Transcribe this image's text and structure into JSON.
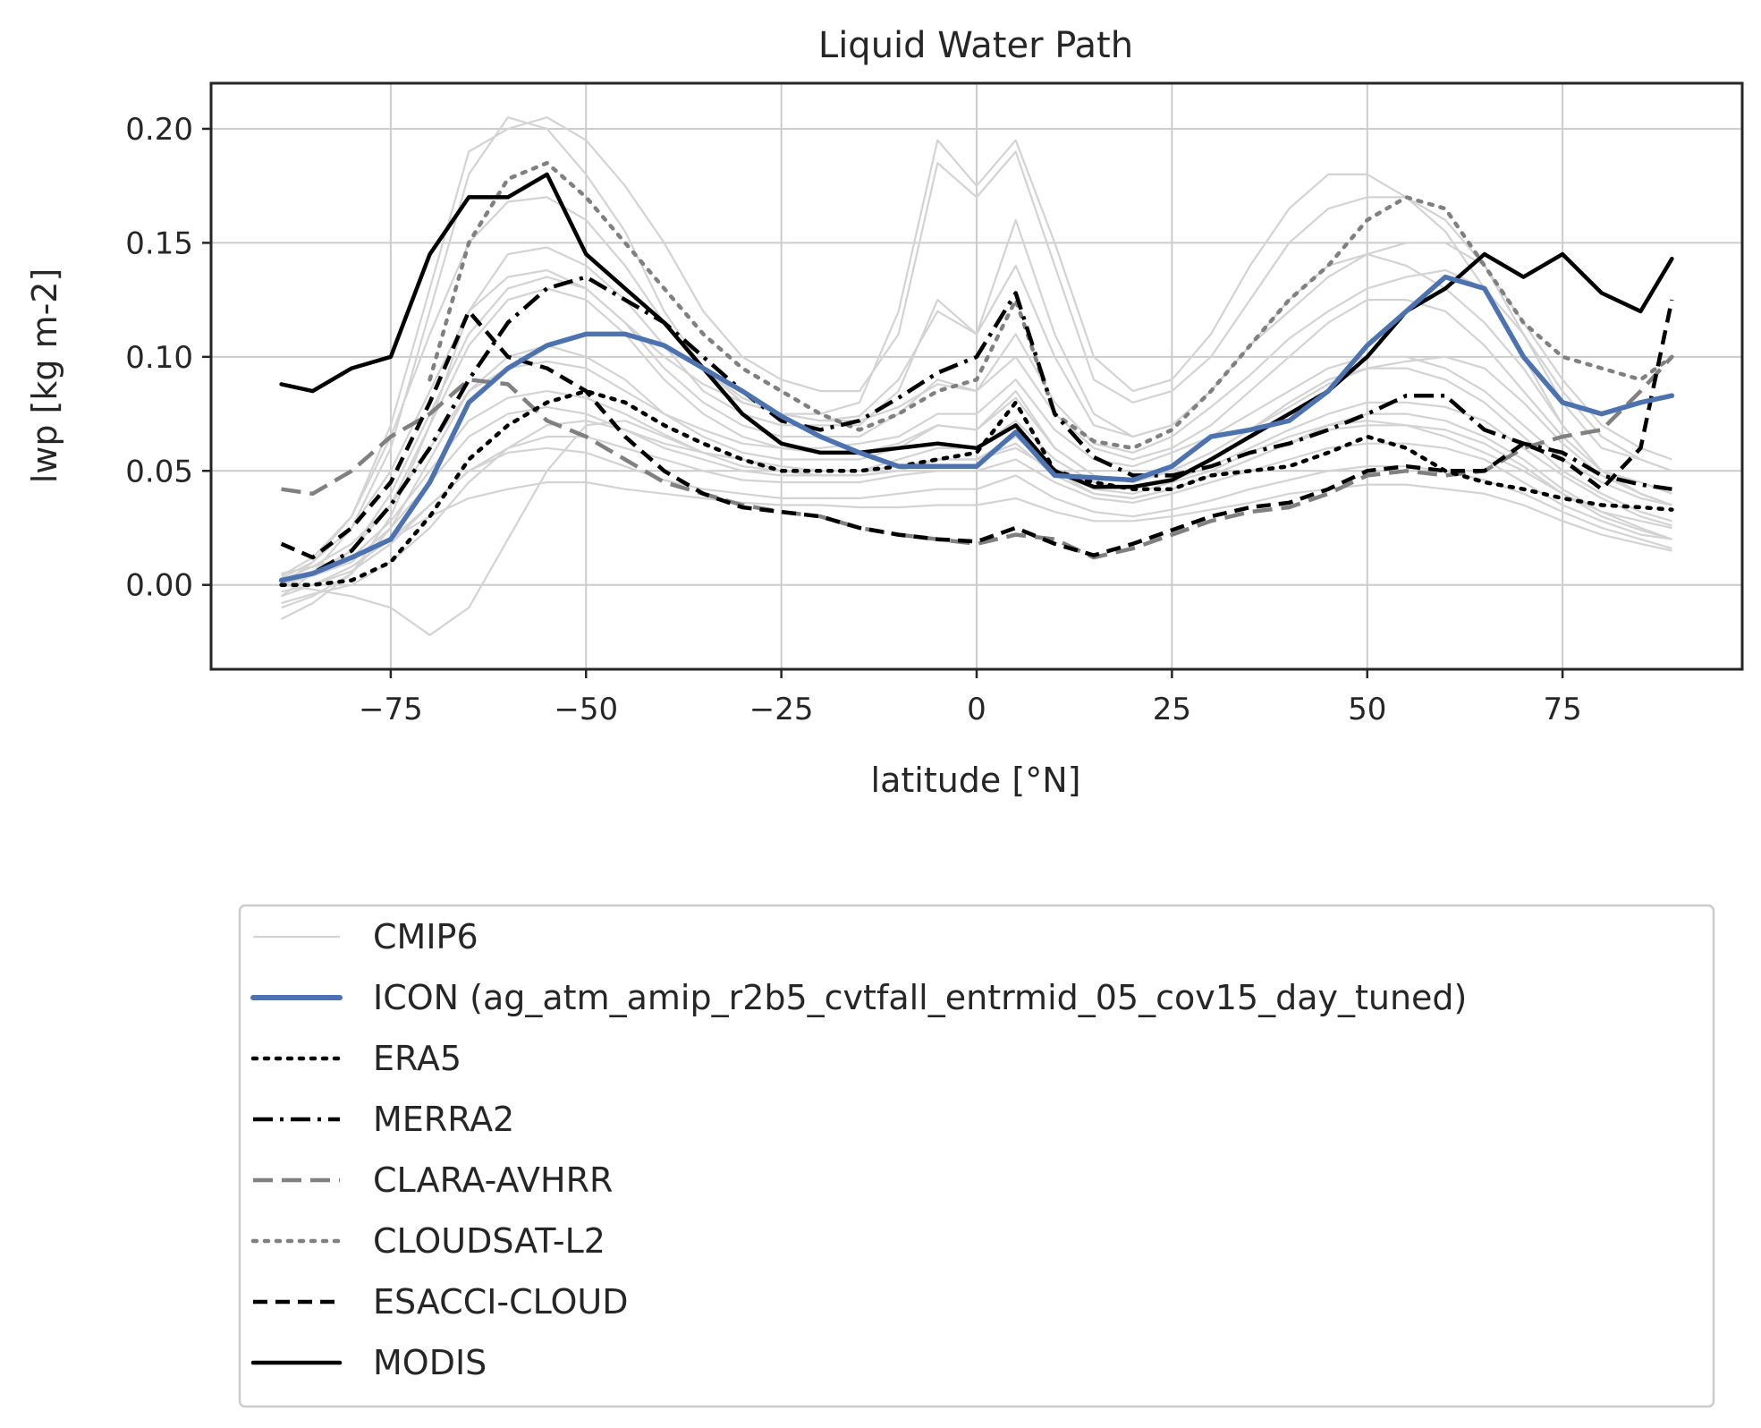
{
  "chart_data": {
    "type": "line",
    "title": "Liquid Water Path",
    "xlabel": "latitude [°N]",
    "ylabel": "lwp [kg m-2]",
    "xlim": [
      -98,
      98
    ],
    "ylim": [
      -0.037,
      0.22
    ],
    "xticks": [
      -75,
      -50,
      -25,
      0,
      25,
      50,
      75
    ],
    "xtick_labels": [
      "−75",
      "−50",
      "−25",
      "0",
      "25",
      "50",
      "75"
    ],
    "yticks": [
      0.0,
      0.05,
      0.1,
      0.15,
      0.2
    ],
    "ytick_labels": [
      "0.00",
      "0.05",
      "0.10",
      "0.15",
      "0.20"
    ],
    "grid": true,
    "legend_position": "below plot",
    "legend_order": [
      "CMIP6",
      "ICON (ag_atm_amip_r2b5_cvtfall_entrmid_05_cov15_day_tuned)",
      "ERA5",
      "MERRA2",
      "CLARA-AVHRR",
      "CLOUDSAT-L2",
      "ESACCI-CLOUD",
      "MODIS"
    ],
    "x": [
      -89,
      -85,
      -80,
      -75,
      -70,
      -65,
      -60,
      -55,
      -50,
      -45,
      -40,
      -35,
      -30,
      -25,
      -20,
      -15,
      -10,
      -5,
      0,
      5,
      10,
      15,
      20,
      25,
      30,
      35,
      40,
      45,
      50,
      55,
      60,
      65,
      70,
      75,
      80,
      85,
      89
    ],
    "cmip6_color": "#d3d3d3",
    "cmip6_models": [
      [
        -0.005,
        0.005,
        0.025,
        0.06,
        0.12,
        0.18,
        0.205,
        0.2,
        0.18,
        0.155,
        0.12,
        0.095,
        0.08,
        0.075,
        0.075,
        0.08,
        0.12,
        0.195,
        0.175,
        0.195,
        0.15,
        0.1,
        0.085,
        0.09,
        0.11,
        0.14,
        0.165,
        0.18,
        0.18,
        0.17,
        0.155,
        0.13,
        0.1,
        0.07,
        0.05,
        0.045,
        0.04
      ],
      [
        0.0,
        0.01,
        0.03,
        0.07,
        0.13,
        0.19,
        0.2,
        0.205,
        0.195,
        0.175,
        0.15,
        0.12,
        0.1,
        0.09,
        0.085,
        0.085,
        0.11,
        0.185,
        0.17,
        0.19,
        0.14,
        0.09,
        0.08,
        0.085,
        0.1,
        0.125,
        0.15,
        0.165,
        0.17,
        0.17,
        0.16,
        0.14,
        0.11,
        0.08,
        0.06,
        0.055,
        0.05
      ],
      [
        -0.015,
        -0.008,
        0.005,
        0.03,
        0.07,
        0.12,
        0.145,
        0.148,
        0.14,
        0.125,
        0.105,
        0.085,
        0.075,
        0.07,
        0.07,
        0.07,
        0.085,
        0.125,
        0.11,
        0.14,
        0.1,
        0.07,
        0.065,
        0.07,
        0.085,
        0.105,
        0.125,
        0.14,
        0.145,
        0.14,
        0.13,
        0.115,
        0.095,
        0.07,
        0.05,
        0.04,
        0.035
      ],
      [
        0.0,
        0.005,
        0.015,
        0.04,
        0.075,
        0.11,
        0.13,
        0.135,
        0.13,
        0.115,
        0.095,
        0.08,
        0.07,
        0.065,
        0.065,
        0.065,
        0.075,
        0.09,
        0.085,
        0.1,
        0.075,
        0.06,
        0.055,
        0.06,
        0.07,
        0.085,
        0.1,
        0.115,
        0.125,
        0.125,
        0.12,
        0.105,
        0.085,
        0.065,
        0.05,
        0.04,
        0.035
      ],
      [
        -0.01,
        -0.005,
        0.005,
        0.025,
        0.055,
        0.085,
        0.1,
        0.105,
        0.1,
        0.09,
        0.075,
        0.065,
        0.058,
        0.055,
        0.055,
        0.055,
        0.06,
        0.07,
        0.068,
        0.085,
        0.06,
        0.048,
        0.045,
        0.05,
        0.058,
        0.068,
        0.08,
        0.09,
        0.095,
        0.095,
        0.09,
        0.08,
        0.065,
        0.05,
        0.04,
        0.032,
        0.028
      ],
      [
        0.0,
        -0.002,
        -0.005,
        -0.01,
        -0.022,
        -0.01,
        0.02,
        0.05,
        0.07,
        0.072,
        0.065,
        0.058,
        0.055,
        0.05,
        0.048,
        0.048,
        0.05,
        0.055,
        0.055,
        0.06,
        0.05,
        0.042,
        0.04,
        0.045,
        0.05,
        0.058,
        0.065,
        0.07,
        0.072,
        0.07,
        0.065,
        0.058,
        0.05,
        0.04,
        0.032,
        0.028,
        0.025
      ],
      [
        0.005,
        0.008,
        0.012,
        0.02,
        0.035,
        0.05,
        0.06,
        0.065,
        0.065,
        0.06,
        0.055,
        0.05,
        0.046,
        0.045,
        0.045,
        0.045,
        0.048,
        0.05,
        0.05,
        0.055,
        0.045,
        0.038,
        0.036,
        0.04,
        0.045,
        0.05,
        0.055,
        0.06,
        0.062,
        0.062,
        0.06,
        0.055,
        0.045,
        0.035,
        0.028,
        0.022,
        0.02
      ],
      [
        -0.005,
        0.0,
        0.008,
        0.02,
        0.03,
        0.038,
        0.042,
        0.045,
        0.045,
        0.042,
        0.04,
        0.038,
        0.036,
        0.035,
        0.035,
        0.034,
        0.034,
        0.035,
        0.035,
        0.038,
        0.032,
        0.028,
        0.028,
        0.03,
        0.033,
        0.036,
        0.04,
        0.042,
        0.044,
        0.044,
        0.042,
        0.04,
        0.035,
        0.028,
        0.022,
        0.018,
        0.015
      ],
      [
        0.002,
        0.008,
        0.018,
        0.035,
        0.06,
        0.085,
        0.095,
        0.098,
        0.095,
        0.085,
        0.075,
        0.068,
        0.062,
        0.06,
        0.06,
        0.062,
        0.065,
        0.075,
        0.075,
        0.09,
        0.068,
        0.055,
        0.052,
        0.058,
        0.065,
        0.075,
        0.085,
        0.095,
        0.1,
        0.1,
        0.095,
        0.085,
        0.07,
        0.055,
        0.045,
        0.038,
        0.035
      ],
      [
        0.0,
        0.004,
        0.01,
        0.025,
        0.045,
        0.065,
        0.075,
        0.078,
        0.075,
        0.068,
        0.06,
        0.055,
        0.05,
        0.048,
        0.048,
        0.048,
        0.05,
        0.055,
        0.055,
        0.065,
        0.05,
        0.04,
        0.038,
        0.042,
        0.048,
        0.055,
        0.062,
        0.07,
        0.075,
        0.075,
        0.072,
        0.065,
        0.055,
        0.042,
        0.032,
        0.025,
        0.02
      ],
      [
        0.003,
        0.01,
        0.025,
        0.05,
        0.085,
        0.12,
        0.135,
        0.138,
        0.13,
        0.115,
        0.1,
        0.088,
        0.08,
        0.075,
        0.072,
        0.072,
        0.078,
        0.088,
        0.085,
        0.11,
        0.08,
        0.062,
        0.058,
        0.065,
        0.078,
        0.092,
        0.108,
        0.12,
        0.13,
        0.135,
        0.138,
        0.13,
        0.11,
        0.085,
        0.065,
        0.055,
        0.05
      ],
      [
        -0.008,
        -0.004,
        0.0,
        0.01,
        0.025,
        0.045,
        0.06,
        0.07,
        0.072,
        0.068,
        0.062,
        0.058,
        0.055,
        0.052,
        0.05,
        0.05,
        0.052,
        0.055,
        0.055,
        0.062,
        0.048,
        0.04,
        0.038,
        0.042,
        0.048,
        0.055,
        0.062,
        0.068,
        0.07,
        0.07,
        0.068,
        0.062,
        0.052,
        0.04,
        0.03,
        0.024,
        0.02
      ],
      [
        0.0,
        0.005,
        0.015,
        0.035,
        0.07,
        0.105,
        0.125,
        0.13,
        0.125,
        0.11,
        0.09,
        0.075,
        0.065,
        0.06,
        0.058,
        0.058,
        0.062,
        0.07,
        0.068,
        0.082,
        0.06,
        0.048,
        0.045,
        0.05,
        0.058,
        0.068,
        0.078,
        0.088,
        0.095,
        0.098,
        0.1,
        0.095,
        0.08,
        0.062,
        0.048,
        0.04,
        0.035
      ],
      [
        0.002,
        0.006,
        0.012,
        0.028,
        0.05,
        0.072,
        0.082,
        0.085,
        0.082,
        0.075,
        0.066,
        0.058,
        0.052,
        0.05,
        0.05,
        0.05,
        0.055,
        0.06,
        0.06,
        0.072,
        0.055,
        0.045,
        0.042,
        0.046,
        0.052,
        0.06,
        0.068,
        0.075,
        0.08,
        0.08,
        0.078,
        0.072,
        0.06,
        0.048,
        0.038,
        0.03,
        0.026
      ],
      [
        -0.003,
        0.0,
        0.006,
        0.018,
        0.035,
        0.05,
        0.058,
        0.06,
        0.058,
        0.052,
        0.046,
        0.042,
        0.04,
        0.038,
        0.038,
        0.038,
        0.04,
        0.042,
        0.042,
        0.048,
        0.038,
        0.032,
        0.03,
        0.033,
        0.037,
        0.042,
        0.046,
        0.05,
        0.052,
        0.052,
        0.05,
        0.046,
        0.04,
        0.032,
        0.025,
        0.02,
        0.016
      ],
      [
        0.004,
        0.012,
        0.03,
        0.065,
        0.11,
        0.15,
        0.168,
        0.17,
        0.16,
        0.14,
        0.115,
        0.095,
        0.082,
        0.075,
        0.072,
        0.074,
        0.09,
        0.12,
        0.11,
        0.16,
        0.11,
        0.075,
        0.065,
        0.07,
        0.085,
        0.105,
        0.12,
        0.135,
        0.145,
        0.15,
        0.15,
        0.14,
        0.115,
        0.09,
        0.07,
        0.06,
        0.055
      ]
    ],
    "series": [
      {
        "name": "ICON (ag_atm_amip_r2b5_cvtfall_entrmid_05_cov15_day_tuned)",
        "color": "#4c72b0",
        "style": "solid-thick",
        "values": [
          0.002,
          0.005,
          0.012,
          0.02,
          0.045,
          0.08,
          0.095,
          0.105,
          0.11,
          0.11,
          0.105,
          0.095,
          0.085,
          0.074,
          0.065,
          0.058,
          0.052,
          0.052,
          0.052,
          0.067,
          0.048,
          0.047,
          0.046,
          0.052,
          0.065,
          0.068,
          0.072,
          0.085,
          0.105,
          0.12,
          0.135,
          0.13,
          0.1,
          0.08,
          0.075,
          0.08,
          0.083
        ]
      },
      {
        "name": "ERA5",
        "color": "#000000",
        "style": "dotted",
        "values": [
          0.0,
          0.0,
          0.002,
          0.01,
          0.03,
          0.055,
          0.07,
          0.08,
          0.085,
          0.08,
          0.07,
          0.062,
          0.055,
          0.05,
          0.05,
          0.05,
          0.052,
          0.055,
          0.058,
          0.08,
          0.05,
          0.045,
          0.042,
          0.042,
          0.048,
          0.05,
          0.052,
          0.058,
          0.065,
          0.06,
          0.05,
          0.045,
          0.042,
          0.038,
          0.035,
          0.034,
          0.033
        ]
      },
      {
        "name": "MERRA2",
        "color": "#000000",
        "style": "dashdot",
        "values": [
          0.002,
          0.005,
          0.015,
          0.035,
          0.06,
          0.09,
          0.115,
          0.13,
          0.135,
          0.125,
          0.115,
          0.1,
          0.085,
          0.072,
          0.068,
          0.072,
          0.082,
          0.093,
          0.1,
          0.128,
          0.075,
          0.056,
          0.048,
          0.048,
          0.052,
          0.058,
          0.062,
          0.068,
          0.075,
          0.083,
          0.083,
          0.068,
          0.062,
          0.058,
          0.048,
          0.044,
          0.042
        ]
      },
      {
        "name": "CLARA-AVHRR",
        "color": "#808080",
        "style": "dashed-long",
        "values": [
          0.042,
          0.04,
          0.05,
          0.065,
          0.075,
          0.09,
          0.088,
          0.072,
          0.065,
          0.055,
          0.045,
          0.04,
          0.035,
          0.032,
          0.03,
          0.025,
          0.022,
          0.02,
          0.018,
          0.022,
          0.02,
          0.012,
          0.016,
          0.022,
          0.028,
          0.032,
          0.034,
          0.04,
          0.048,
          0.05,
          0.048,
          0.05,
          0.06,
          0.065,
          0.068,
          0.085,
          0.1
        ]
      },
      {
        "name": "CLOUDSAT-L2",
        "color": "#808080",
        "style": "dotted",
        "values": [
          null,
          null,
          null,
          null,
          0.09,
          0.15,
          0.178,
          0.185,
          0.17,
          0.15,
          0.13,
          0.11,
          0.095,
          0.085,
          0.075,
          0.068,
          0.075,
          0.085,
          0.09,
          0.125,
          0.075,
          0.063,
          0.06,
          0.068,
          0.085,
          0.105,
          0.125,
          0.14,
          0.16,
          0.17,
          0.165,
          0.14,
          0.115,
          0.1,
          0.095,
          0.09,
          0.1
        ]
      },
      {
        "name": "ESACCI-CLOUD",
        "color": "#000000",
        "style": "dashed",
        "values": [
          0.018,
          0.012,
          0.025,
          0.045,
          0.08,
          0.12,
          0.1,
          0.095,
          0.085,
          0.065,
          0.05,
          0.04,
          0.034,
          0.032,
          0.03,
          0.025,
          0.022,
          0.02,
          0.019,
          0.025,
          0.018,
          0.013,
          0.018,
          0.024,
          0.03,
          0.034,
          0.036,
          0.042,
          0.05,
          0.052,
          0.05,
          0.05,
          0.062,
          0.055,
          0.042,
          0.06,
          0.125
        ]
      },
      {
        "name": "MODIS",
        "color": "#000000",
        "style": "solid",
        "values": [
          0.088,
          0.085,
          0.095,
          0.1,
          0.145,
          0.17,
          0.17,
          0.18,
          0.145,
          0.13,
          0.115,
          0.095,
          0.075,
          0.062,
          0.058,
          0.058,
          0.06,
          0.062,
          0.06,
          0.07,
          0.05,
          0.043,
          0.043,
          0.046,
          0.055,
          0.065,
          0.075,
          0.085,
          0.1,
          0.12,
          0.13,
          0.145,
          0.135,
          0.145,
          0.128,
          0.12,
          0.143
        ]
      }
    ]
  }
}
